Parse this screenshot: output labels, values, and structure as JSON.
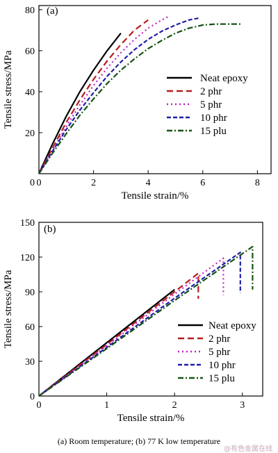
{
  "caption": "(a)  Room  temperature;  (b) 77 K low temperature",
  "watermark": "@有色金属在线",
  "chart_data": [
    {
      "type": "line",
      "panel_label": "(a)",
      "xlabel": "Tensile strain/%",
      "ylabel": "Tensile stress/MPa",
      "xlim": [
        0,
        8.5
      ],
      "ylim": [
        0,
        82
      ],
      "xticks": [
        0,
        2,
        4,
        6,
        8
      ],
      "yticks": [
        20,
        40,
        60,
        80
      ],
      "legend_position": "lower-right",
      "series": [
        {
          "name": "Neat epoxy",
          "color": "#000000",
          "dash": "solid",
          "x": [
            0,
            0.5,
            1.0,
            1.5,
            2.0,
            2.5,
            3.0
          ],
          "y": [
            0,
            14.5,
            28.0,
            40.0,
            50.5,
            60.0,
            68.5
          ]
        },
        {
          "name": "2 phr",
          "color": "#b51c1c",
          "dash": "dashed",
          "x": [
            0,
            0.5,
            1.0,
            1.5,
            2.0,
            2.5,
            3.0,
            3.5,
            4.0
          ],
          "y": [
            0,
            12.5,
            25.0,
            36.0,
            46.0,
            55.0,
            63.0,
            70.0,
            75.0
          ]
        },
        {
          "name": "5 phr",
          "color": "#c41ec4",
          "dash": "dotted",
          "x": [
            0,
            0.5,
            1.0,
            1.5,
            2.0,
            2.5,
            3.0,
            3.5,
            4.0,
            4.5,
            4.8
          ],
          "y": [
            0,
            11.5,
            23.0,
            33.5,
            43.0,
            51.5,
            59.0,
            65.5,
            71.0,
            75.0,
            77.0
          ]
        },
        {
          "name": "10 phr",
          "color": "#1e1ea8",
          "dash": "shortdash",
          "x": [
            0,
            0.5,
            1.0,
            1.5,
            2.0,
            2.5,
            3.0,
            3.5,
            4.0,
            4.5,
            5.0,
            5.5,
            5.9
          ],
          "y": [
            0,
            11.0,
            21.5,
            31.0,
            39.5,
            47.5,
            54.5,
            60.5,
            65.5,
            69.5,
            72.5,
            75.0,
            76.0
          ]
        },
        {
          "name": "15 plu",
          "color": "#145214",
          "dash": "dashdot",
          "x": [
            0,
            0.5,
            1.0,
            1.5,
            2.0,
            2.5,
            3.0,
            3.5,
            4.0,
            4.5,
            5.0,
            5.5,
            6.0,
            6.5,
            7.0,
            7.4
          ],
          "y": [
            0,
            10.0,
            19.5,
            28.5,
            36.5,
            44.0,
            50.5,
            56.0,
            61.0,
            65.0,
            68.5,
            71.0,
            72.5,
            73.0,
            73.0,
            73.0
          ]
        }
      ]
    },
    {
      "type": "line",
      "panel_label": "(b)",
      "xlabel": "Tensile strain/%",
      "ylabel": "Tensile stress/MPa",
      "xlim": [
        0,
        3.3
      ],
      "ylim": [
        0,
        150
      ],
      "xticks": [
        0,
        1,
        2,
        3
      ],
      "yticks": [
        0,
        30,
        60,
        90,
        120,
        150
      ],
      "legend_position": "lower-right",
      "series": [
        {
          "name": "Neat epoxy",
          "color": "#000000",
          "dash": "solid",
          "x": [
            0,
            1.0,
            2.0
          ],
          "y": [
            0,
            46.0,
            92.0
          ],
          "drop_to": null
        },
        {
          "name": "2 phr",
          "color": "#b51c1c",
          "dash": "dashed",
          "x": [
            0,
            1.0,
            2.0,
            2.35
          ],
          "y": [
            0,
            44.5,
            90.0,
            106.0
          ],
          "drop_to": 84
        },
        {
          "name": "5 phr",
          "color": "#c41ec4",
          "dash": "dotted",
          "x": [
            0,
            1.0,
            2.0,
            2.72
          ],
          "y": [
            0,
            43.5,
            88.0,
            119.0
          ],
          "drop_to": 87
        },
        {
          "name": "10 phr",
          "color": "#1e1ea8",
          "dash": "shortdash",
          "x": [
            0,
            1.0,
            2.0,
            2.97
          ],
          "y": [
            0,
            42.0,
            84.5,
            124.0
          ],
          "drop_to": 89
        },
        {
          "name": "15 plu",
          "color": "#145214",
          "dash": "dashdot",
          "x": [
            0,
            1.0,
            2.0,
            3.15
          ],
          "y": [
            0,
            41.0,
            82.5,
            129.0
          ],
          "drop_to": 92
        }
      ]
    }
  ]
}
